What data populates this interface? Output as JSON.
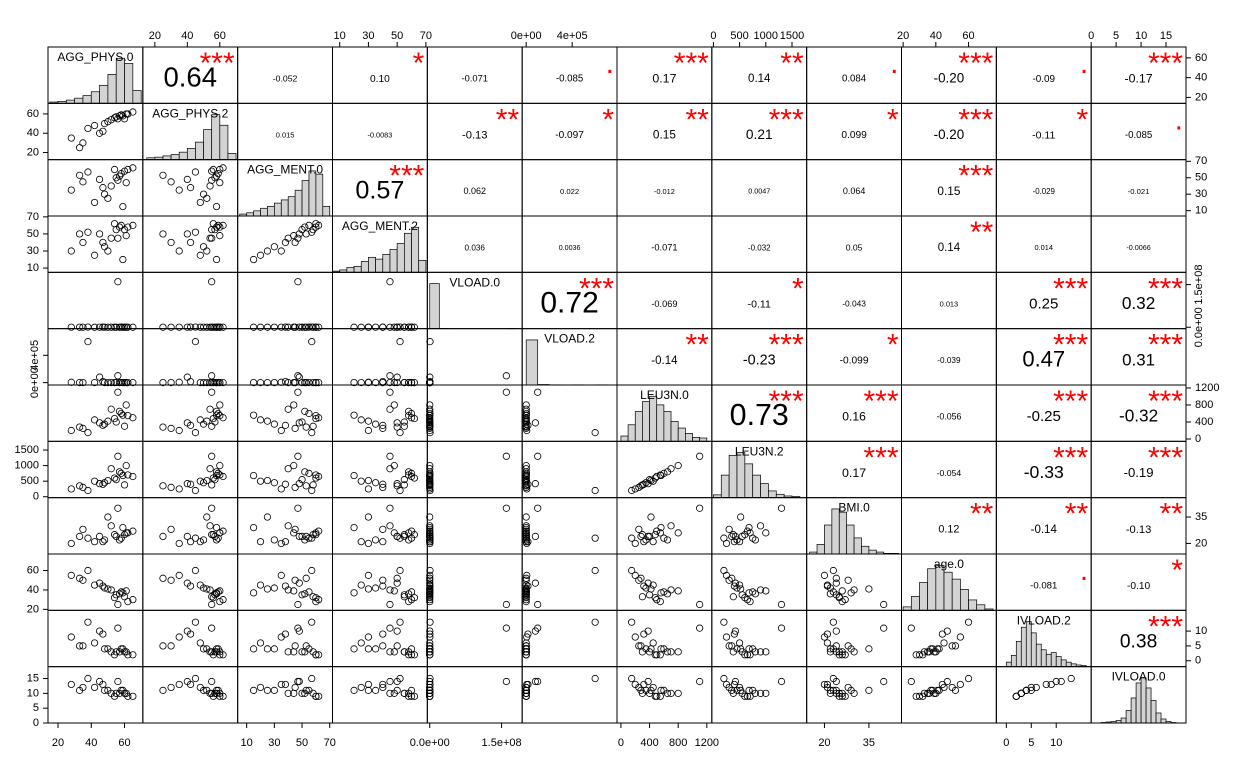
{
  "chart_data": {
    "type": "scatter_matrix",
    "variables": [
      {
        "name": "AGG_PHYS.0",
        "lim": [
          14,
          71
        ],
        "ticks": [
          20,
          40,
          60
        ],
        "hist": {
          "bins": [
            15,
            20,
            25,
            30,
            35,
            40,
            45,
            50,
            55,
            60,
            65,
            70
          ],
          "counts": [
            2,
            3,
            5,
            8,
            12,
            18,
            28,
            45,
            70,
            62,
            20
          ]
        },
        "sample": [
          55,
          48,
          62,
          35,
          58,
          42,
          60,
          52,
          28,
          65,
          45,
          57,
          50,
          38,
          61,
          54,
          47,
          59,
          33,
          56
        ]
      },
      {
        "name": "AGG_PHYS.2",
        "lim": [
          12.6,
          71
        ],
        "ticks": [
          20,
          40,
          60
        ],
        "hist": {
          "bins": [
            15,
            20,
            25,
            30,
            35,
            40,
            45,
            50,
            55,
            60,
            65,
            70
          ],
          "counts": [
            3,
            4,
            6,
            8,
            12,
            18,
            28,
            48,
            72,
            55,
            10
          ]
        },
        "sample": [
          57,
          50,
          60,
          30,
          59,
          48,
          55,
          54,
          35,
          62,
          40,
          58,
          52,
          45,
          60,
          56,
          42,
          58,
          25,
          55
        ]
      },
      {
        "name": "AGG_MENT.0",
        "lim": [
          3.5,
          72
        ],
        "ticks": [
          10,
          30,
          50,
          70
        ],
        "hist": {
          "bins": [
            5,
            10,
            15,
            20,
            25,
            30,
            35,
            40,
            45,
            50,
            55,
            60,
            65,
            70
          ],
          "counts": [
            3,
            5,
            8,
            12,
            15,
            20,
            25,
            30,
            40,
            55,
            70,
            65,
            15
          ]
        },
        "sample": [
          50,
          30,
          60,
          45,
          55,
          20,
          58,
          40,
          35,
          62,
          48,
          52,
          25,
          57,
          44,
          60,
          38,
          15,
          53,
          47
        ]
      },
      {
        "name": "AGG_MENT.2",
        "lim": [
          5,
          71
        ],
        "ticks": [
          10,
          30,
          50,
          70
        ],
        "hist": {
          "bins": [
            5,
            10,
            15,
            20,
            25,
            30,
            35,
            40,
            45,
            50,
            55,
            60,
            65,
            70
          ],
          "counts": [
            2,
            4,
            8,
            10,
            18,
            25,
            22,
            30,
            38,
            48,
            65,
            75,
            20
          ]
        },
        "sample": [
          55,
          35,
          58,
          40,
          60,
          25,
          55,
          45,
          30,
          60,
          50,
          58,
          30,
          52,
          48,
          62,
          40,
          20,
          50,
          45
        ]
      },
      {
        "name": "VLOAD.0",
        "lim": [
          -5000000,
          193000000
        ],
        "ticks": [
          {
            "value": 0,
            "label": "0.0e+00"
          },
          {
            "value": 150000000,
            "label": "1.5e+08"
          }
        ],
        "hist": {
          "bins": [
            0,
            20000000,
            40000000,
            60000000,
            80000000,
            100000000,
            120000000,
            140000000,
            160000000,
            180000000
          ],
          "counts": [
            480,
            1,
            0,
            0,
            0,
            0,
            0,
            0,
            1
          ]
        },
        "sample": [
          20000,
          150000,
          5000,
          80000,
          300000,
          1000,
          50000,
          10000,
          200000,
          7000,
          120000,
          40000,
          2000,
          600000,
          90000,
          15000,
          400000,
          3000,
          60000,
          160000000
        ]
      },
      {
        "name": "VLOAD.2",
        "lim": [
          -35000,
          790000
        ],
        "ticks": [
          {
            "value": 0,
            "label": "0e+00"
          },
          {
            "value": 400000,
            "label": "4e+05"
          }
        ],
        "hist": {
          "bins": [
            0,
            100000,
            200000,
            300000,
            400000,
            500000,
            600000,
            700000
          ],
          "counts": [
            470,
            5,
            2,
            1,
            2,
            0,
            2
          ]
        },
        "sample": [
          500,
          50,
          0,
          100,
          2000,
          0,
          50,
          200,
          5000,
          0,
          80000,
          50,
          0,
          600000,
          100,
          0,
          15000,
          50,
          300,
          100000
        ]
      },
      {
        "name": "LEU3N.0",
        "lim": [
          -55,
          1270
        ],
        "ticks": [
          0,
          400,
          800,
          1200
        ],
        "hist": {
          "bins": [
            0,
            100,
            200,
            300,
            400,
            500,
            600,
            700,
            800,
            900,
            1000,
            1100,
            1200
          ],
          "counts": [
            8,
            25,
            45,
            60,
            68,
            55,
            45,
            30,
            20,
            12,
            6,
            5
          ]
        },
        "sample": [
          400,
          350,
          550,
          250,
          600,
          450,
          300,
          700,
          200,
          500,
          380,
          650,
          420,
          150,
          800,
          480,
          320,
          560,
          280,
          1100
        ]
      },
      {
        "name": "LEU3N.2",
        "lim": [
          -30,
          1780
        ],
        "ticks": [
          0,
          500,
          1000,
          1500
        ],
        "hist": {
          "bins": [
            0,
            150,
            300,
            450,
            600,
            750,
            900,
            1050,
            1200,
            1350,
            1500,
            1650
          ],
          "counts": [
            5,
            40,
            75,
            80,
            60,
            40,
            25,
            12,
            6,
            3,
            2
          ]
        },
        "sample": [
          550,
          450,
          700,
          300,
          750,
          500,
          380,
          900,
          250,
          650,
          420,
          800,
          520,
          200,
          1000,
          600,
          400,
          680,
          350,
          1300
        ]
      },
      {
        "name": "BMI.0",
        "lim": [
          14,
          46
        ],
        "ticks": [
          20,
          35
        ],
        "hist": {
          "bins": [
            15,
            17.5,
            20,
            22.5,
            25,
            27.5,
            30,
            32.5,
            35,
            37.5,
            40,
            42.5,
            45
          ],
          "counts": [
            3,
            15,
            45,
            70,
            65,
            45,
            25,
            12,
            6,
            3,
            1,
            1
          ]
        },
        "sample": [
          24,
          22,
          26,
          28,
          23,
          21,
          25,
          30,
          20,
          27,
          24,
          22,
          35,
          23,
          26,
          25,
          21,
          29,
          24,
          40
        ]
      },
      {
        "name": "age.0",
        "lim": [
          19,
          77
        ],
        "ticks": [
          20,
          40,
          60
        ],
        "hist": {
          "bins": [
            20,
            25,
            30,
            35,
            40,
            45,
            50,
            55,
            60,
            65,
            70,
            75
          ],
          "counts": [
            5,
            20,
            40,
            60,
            65,
            55,
            45,
            30,
            15,
            8,
            2
          ]
        },
        "sample": [
          35,
          42,
          28,
          50,
          38,
          45,
          33,
          40,
          55,
          30,
          47,
          36,
          41,
          60,
          39,
          32,
          44,
          37,
          52,
          25
        ]
      },
      {
        "name": "IVLOAD.2",
        "lim": [
          -2,
          17
        ],
        "ticks": [
          0,
          5,
          10
        ],
        "hist": {
          "bins": [
            0,
            1,
            2,
            3,
            4,
            5,
            6,
            7,
            8,
            9,
            10,
            11,
            12,
            13,
            14,
            15,
            16
          ],
          "counts": [
            8,
            20,
            45,
            70,
            80,
            60,
            40,
            30,
            22,
            25,
            18,
            12,
            8,
            5,
            3,
            2
          ]
        },
        "sample": [
          3,
          4,
          2,
          5,
          4,
          6,
          3,
          3,
          8,
          2,
          10,
          3,
          4,
          13,
          3,
          2,
          9,
          4,
          5,
          11
        ]
      },
      {
        "name": "IVLOAD.0",
        "lim": [
          0,
          19
        ],
        "ticks": [
          0,
          5,
          10,
          15
        ],
        "hist": {
          "bins": [
            0,
            1,
            2,
            3,
            4,
            5,
            6,
            7,
            8,
            9,
            10,
            11,
            12,
            13,
            14,
            15,
            16,
            17,
            18
          ],
          "counts": [
            0,
            0,
            1,
            2,
            3,
            5,
            10,
            25,
            50,
            80,
            90,
            70,
            45,
            20,
            8,
            3,
            1,
            0
          ]
        },
        "sample": [
          10,
          11,
          9,
          12,
          11,
          12,
          10,
          10,
          13,
          9,
          14,
          10,
          11,
          15,
          10,
          9,
          13,
          11,
          11,
          14
        ]
      }
    ],
    "correlations": [
      [
        {
          "value": 0.64,
          "label": "0.64",
          "stars": "***"
        },
        {
          "value": -0.052,
          "label": "-0.052"
        },
        {
          "value": 0.1,
          "label": "0.10",
          "stars": "*"
        },
        {
          "value": -0.071,
          "label": "-0.071"
        },
        {
          "value": -0.085,
          "label": "-0.085",
          "stars": "."
        },
        {
          "value": 0.17,
          "label": "0.17",
          "stars": "***"
        },
        {
          "value": 0.14,
          "label": "0.14",
          "stars": "**"
        },
        {
          "value": 0.084,
          "label": "0.084",
          "stars": "."
        },
        {
          "value": -0.2,
          "label": "-0.20",
          "stars": "***"
        },
        {
          "value": -0.09,
          "label": "-0.09",
          "stars": "."
        },
        {
          "value": -0.17,
          "label": "-0.17",
          "stars": "***"
        }
      ],
      [
        {
          "value": 0.015,
          "label": "0.015"
        },
        {
          "value": -0.0083,
          "label": "-0.0083"
        },
        {
          "value": -0.13,
          "label": "-0.13",
          "stars": "**"
        },
        {
          "value": -0.097,
          "label": "-0.097",
          "stars": "*"
        },
        {
          "value": 0.15,
          "label": "0.15",
          "stars": "**"
        },
        {
          "value": 0.21,
          "label": "0.21",
          "stars": "***"
        },
        {
          "value": 0.099,
          "label": "0.099",
          "stars": "*"
        },
        {
          "value": -0.2,
          "label": "-0.20",
          "stars": "***"
        },
        {
          "value": -0.11,
          "label": "-0.11",
          "stars": "*"
        },
        {
          "value": -0.085,
          "label": "-0.085",
          "stars": "."
        }
      ],
      [
        {
          "value": 0.57,
          "label": "0.57",
          "stars": "***"
        },
        {
          "value": 0.062,
          "label": "0.062"
        },
        {
          "value": 0.022,
          "label": "0.022"
        },
        {
          "value": -0.012,
          "label": "-0.012"
        },
        {
          "value": 0.0047,
          "label": "0.0047"
        },
        {
          "value": 0.064,
          "label": "0.064"
        },
        {
          "value": 0.15,
          "label": "0.15",
          "stars": "***"
        },
        {
          "value": -0.029,
          "label": "-0.029"
        },
        {
          "value": -0.021,
          "label": "-0.021"
        }
      ],
      [
        {
          "value": 0.036,
          "label": "0.036"
        },
        {
          "value": 0.0036,
          "label": "0.0036"
        },
        {
          "value": -0.071,
          "label": "-0.071"
        },
        {
          "value": -0.032,
          "label": "-0.032"
        },
        {
          "value": 0.05,
          "label": "0.05"
        },
        {
          "value": 0.14,
          "label": "0.14",
          "stars": "**"
        },
        {
          "value": 0.014,
          "label": "0.014"
        },
        {
          "value": -0.0066,
          "label": "-0.0066"
        }
      ],
      [
        {
          "value": 0.72,
          "label": "0.72",
          "stars": "***"
        },
        {
          "value": -0.069,
          "label": "-0.069"
        },
        {
          "value": -0.11,
          "label": "-0.11",
          "stars": "*"
        },
        {
          "value": -0.043,
          "label": "-0.043"
        },
        {
          "value": 0.013,
          "label": "0.013"
        },
        {
          "value": 0.25,
          "label": "0.25",
          "stars": "***"
        },
        {
          "value": 0.32,
          "label": "0.32",
          "stars": "***"
        }
      ],
      [
        {
          "value": -0.14,
          "label": "-0.14",
          "stars": "**"
        },
        {
          "value": -0.23,
          "label": "-0.23",
          "stars": "***"
        },
        {
          "value": -0.099,
          "label": "-0.099",
          "stars": "*"
        },
        {
          "value": -0.039,
          "label": "-0.039"
        },
        {
          "value": 0.47,
          "label": "0.47",
          "stars": "***"
        },
        {
          "value": 0.31,
          "label": "0.31",
          "stars": "***"
        }
      ],
      [
        {
          "value": 0.73,
          "label": "0.73",
          "stars": "***"
        },
        {
          "value": 0.16,
          "label": "0.16",
          "stars": "***"
        },
        {
          "value": -0.056,
          "label": "-0.056"
        },
        {
          "value": -0.25,
          "label": "-0.25",
          "stars": "***"
        },
        {
          "value": -0.32,
          "label": "-0.32",
          "stars": "***"
        }
      ],
      [
        {
          "value": 0.17,
          "label": "0.17",
          "stars": "***"
        },
        {
          "value": -0.054,
          "label": "-0.054"
        },
        {
          "value": -0.33,
          "label": "-0.33",
          "stars": "***"
        },
        {
          "value": -0.19,
          "label": "-0.19",
          "stars": "***"
        }
      ],
      [
        {
          "value": 0.12,
          "label": "0.12",
          "stars": "**"
        },
        {
          "value": -0.14,
          "label": "-0.14",
          "stars": "**"
        },
        {
          "value": -0.13,
          "label": "-0.13",
          "stars": "**"
        }
      ],
      [
        {
          "value": -0.081,
          "label": "-0.081",
          "stars": "."
        },
        {
          "value": -0.1,
          "label": "-0.10",
          "stars": "*"
        }
      ],
      [
        {
          "value": 0.38,
          "label": "0.38",
          "stars": "***"
        }
      ]
    ]
  }
}
